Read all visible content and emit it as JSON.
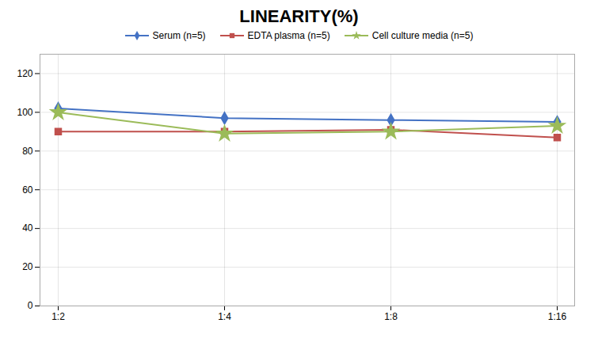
{
  "chart_data": {
    "type": "line",
    "title": "LINEARITY(%)",
    "categories": [
      "1:2",
      "1:4",
      "1:8",
      "1:16"
    ],
    "series": [
      {
        "name": "Serum (n=5)",
        "color": "#4472C4",
        "marker": "diamond",
        "values": [
          102,
          97,
          96,
          95
        ]
      },
      {
        "name": "EDTA plasma (n=5)",
        "color": "#C0504D",
        "marker": "square",
        "values": [
          90,
          90,
          91,
          87
        ]
      },
      {
        "name": "Cell culture media (n=5)",
        "color": "#9BBB59",
        "marker": "star",
        "values": [
          100,
          89,
          90,
          93
        ]
      }
    ],
    "ylim": [
      0,
      130
    ],
    "yticks": [
      0,
      20,
      40,
      60,
      80,
      100,
      120
    ],
    "grid": true,
    "legend": "top"
  }
}
